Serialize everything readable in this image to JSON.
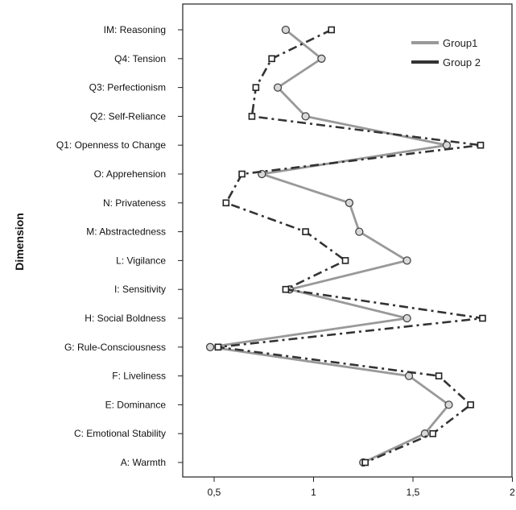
{
  "chart_data": {
    "type": "line",
    "orientation": "horizontal",
    "ylabel": "Dimension",
    "xlabel": "",
    "categories": [
      "IM: Reasoning",
      "Q4: Tension",
      "Q3: Perfectionism",
      "Q2: Self-Reliance",
      "Q1: Openness to Change",
      "O: Apprehension",
      "N: Privateness",
      "M: Abstractedness",
      "L: Vigilance",
      "I: Sensitivity",
      "H: Social Boldness",
      "G: Rule-Consciousness",
      "F: Liveliness",
      "E: Dominance",
      "C: Emotional Stability",
      "A: Warmth"
    ],
    "xlim": [
      0.35,
      2.0
    ],
    "xticks": [
      {
        "value": 0.5,
        "label": "0,5"
      },
      {
        "value": 1.0,
        "label": "1"
      },
      {
        "value": 1.5,
        "label": "1,5"
      },
      {
        "value": 2.0,
        "label": "2"
      }
    ],
    "legend_position": "top-right",
    "grid": false,
    "series": [
      {
        "name": "Group1",
        "color": "#999999",
        "line_style": "solid",
        "marker": "circle",
        "values": [
          0.86,
          1.04,
          0.82,
          0.96,
          1.67,
          0.74,
          1.18,
          1.23,
          1.47,
          0.88,
          1.47,
          0.48,
          1.48,
          1.68,
          1.56,
          1.25
        ]
      },
      {
        "name": "Group 2",
        "color": "#333333",
        "line_style": "dash-dot",
        "marker": "square",
        "values": [
          1.09,
          0.79,
          0.71,
          0.69,
          1.84,
          0.64,
          0.56,
          0.96,
          1.16,
          0.86,
          1.85,
          0.52,
          1.63,
          1.79,
          1.6,
          1.26
        ]
      }
    ]
  }
}
